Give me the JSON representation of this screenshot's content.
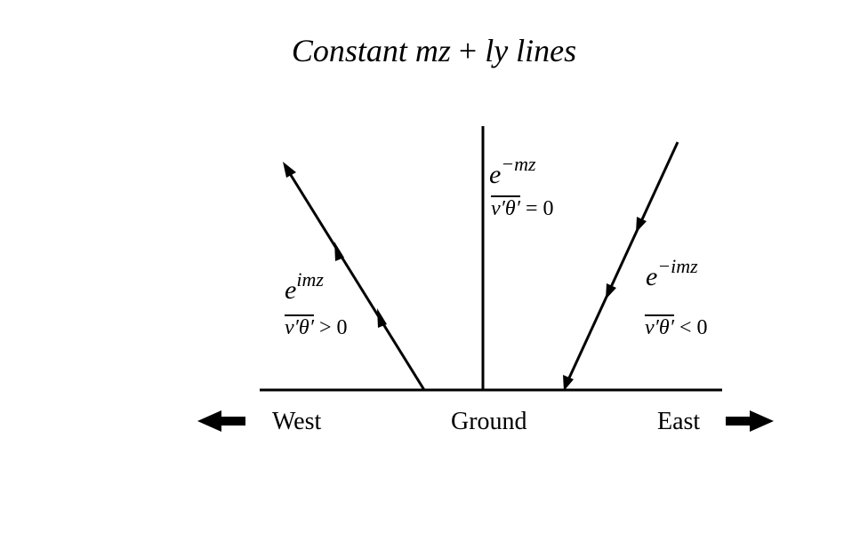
{
  "title": {
    "left": "Constant mz",
    "op": "+",
    "right": "ly lines"
  },
  "labels": {
    "west": "West",
    "ground": "Ground",
    "east": "East"
  },
  "regions": {
    "west": {
      "base": "e",
      "sup": "imz",
      "flux_var": "v′θ′",
      "flux_rel": "> 0"
    },
    "center": {
      "base": "e",
      "sup": "−mz",
      "flux_var": "v′θ′",
      "flux_rel": "= 0"
    },
    "east": {
      "base": "e",
      "sup": "−imz",
      "flux_var": "v′θ′",
      "flux_rel": "< 0"
    }
  }
}
